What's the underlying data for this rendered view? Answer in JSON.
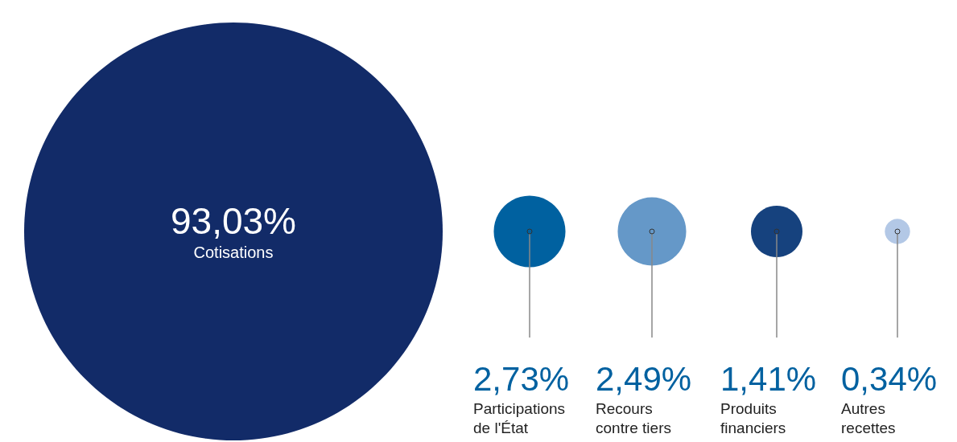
{
  "chart_data": {
    "type": "other",
    "categories": [
      "Cotisations",
      "Participations de l'État",
      "Recours contre tiers",
      "Produits financiers",
      "Autres recettes"
    ],
    "values": [
      93.03,
      2.73,
      2.49,
      1.41,
      0.34
    ],
    "value_labels": [
      "93,03%",
      "2,73%",
      "2,49%",
      "1,41%",
      "0,34%"
    ],
    "colors": [
      "#122b68",
      "#0061a0",
      "#6598c8",
      "#16427e",
      "#b3c8e6"
    ]
  }
}
